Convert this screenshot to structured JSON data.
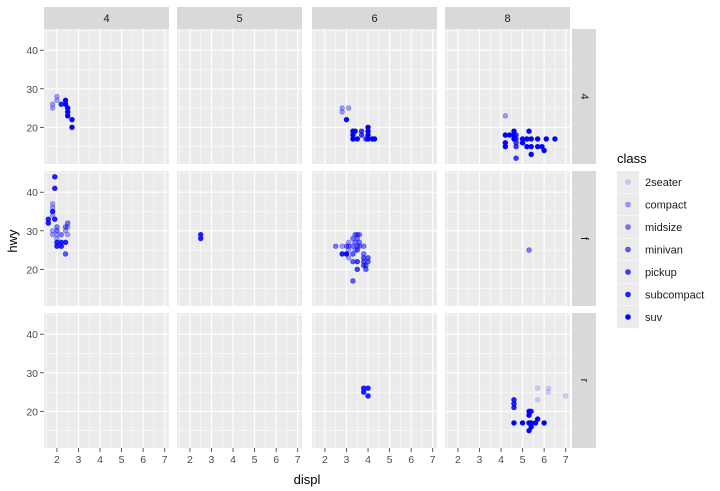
{
  "chart_data": {
    "type": "scatter",
    "facet_type": "grid",
    "xlabel": "displ",
    "ylabel": "hwy",
    "xlim": [
      1.4,
      7.2
    ],
    "ylim": [
      10.5,
      45.5
    ],
    "x_ticks": [
      2,
      3,
      4,
      5,
      6,
      7
    ],
    "y_ticks": [
      20,
      30,
      40
    ],
    "facet_cols": [
      "4",
      "5",
      "6",
      "8"
    ],
    "facet_rows": [
      "4",
      "f",
      "r"
    ],
    "grid": true,
    "legend": {
      "title": "class",
      "position": "right",
      "items": [
        {
          "label": "2seater",
          "color": "#0000ff",
          "alpha": 0.15
        },
        {
          "label": "compact",
          "color": "#0000ff",
          "alpha": 0.35
        },
        {
          "label": "midsize",
          "color": "#0000ff",
          "alpha": 0.5
        },
        {
          "label": "minivan",
          "color": "#0000ff",
          "alpha": 0.62
        },
        {
          "label": "pickup",
          "color": "#0000ff",
          "alpha": 0.75
        },
        {
          "label": "subcompact",
          "color": "#0000ff",
          "alpha": 0.87
        },
        {
          "label": "suv",
          "color": "#0000ff",
          "alpha": 1.0
        }
      ]
    },
    "panels": [
      {
        "row": "4",
        "col": "4",
        "points": [
          {
            "x": 1.8,
            "y": 26,
            "class": "compact"
          },
          {
            "x": 1.8,
            "y": 25,
            "class": "compact"
          },
          {
            "x": 2.0,
            "y": 28,
            "class": "compact"
          },
          {
            "x": 2.0,
            "y": 27,
            "class": "compact"
          },
          {
            "x": 2.2,
            "y": 26,
            "class": "subcompact"
          },
          {
            "x": 2.4,
            "y": 27,
            "class": "suv"
          },
          {
            "x": 2.4,
            "y": 26,
            "class": "suv"
          },
          {
            "x": 2.5,
            "y": 25,
            "class": "suv"
          },
          {
            "x": 2.5,
            "y": 24,
            "class": "suv"
          },
          {
            "x": 2.5,
            "y": 23,
            "class": "suv"
          },
          {
            "x": 2.7,
            "y": 22,
            "class": "suv"
          },
          {
            "x": 2.7,
            "y": 20,
            "class": "suv"
          }
        ]
      },
      {
        "row": "4",
        "col": "5",
        "points": []
      },
      {
        "row": "4",
        "col": "6",
        "points": [
          {
            "x": 2.8,
            "y": 25,
            "class": "compact"
          },
          {
            "x": 2.8,
            "y": 24,
            "class": "compact"
          },
          {
            "x": 3.1,
            "y": 25,
            "class": "compact"
          },
          {
            "x": 3.0,
            "y": 22,
            "class": "suv"
          },
          {
            "x": 3.3,
            "y": 19,
            "class": "suv"
          },
          {
            "x": 3.4,
            "y": 19,
            "class": "suv"
          },
          {
            "x": 3.3,
            "y": 18,
            "class": "suv"
          },
          {
            "x": 3.3,
            "y": 17,
            "class": "suv"
          },
          {
            "x": 3.5,
            "y": 17,
            "class": "suv"
          },
          {
            "x": 3.7,
            "y": 19,
            "class": "pickup"
          },
          {
            "x": 3.7,
            "y": 18,
            "class": "pickup"
          },
          {
            "x": 3.9,
            "y": 17,
            "class": "pickup"
          },
          {
            "x": 4.0,
            "y": 20,
            "class": "suv"
          },
          {
            "x": 4.0,
            "y": 19,
            "class": "suv"
          },
          {
            "x": 4.0,
            "y": 18,
            "class": "suv"
          },
          {
            "x": 4.0,
            "y": 17,
            "class": "suv"
          },
          {
            "x": 4.2,
            "y": 17,
            "class": "suv"
          },
          {
            "x": 4.3,
            "y": 17,
            "class": "suv"
          }
        ]
      },
      {
        "row": "4",
        "col": "8",
        "points": [
          {
            "x": 4.2,
            "y": 23,
            "class": "compact"
          },
          {
            "x": 4.2,
            "y": 18,
            "class": "suv"
          },
          {
            "x": 4.4,
            "y": 18,
            "class": "suv"
          },
          {
            "x": 4.2,
            "y": 16,
            "class": "suv"
          },
          {
            "x": 4.2,
            "y": 15,
            "class": "suv"
          },
          {
            "x": 4.6,
            "y": 19,
            "class": "suv"
          },
          {
            "x": 4.6,
            "y": 18,
            "class": "suv"
          },
          {
            "x": 4.6,
            "y": 17,
            "class": "suv"
          },
          {
            "x": 4.7,
            "y": 18,
            "class": "pickup"
          },
          {
            "x": 4.7,
            "y": 17,
            "class": "pickup"
          },
          {
            "x": 4.7,
            "y": 16,
            "class": "pickup"
          },
          {
            "x": 4.7,
            "y": 15,
            "class": "pickup"
          },
          {
            "x": 4.7,
            "y": 12,
            "class": "pickup"
          },
          {
            "x": 5.0,
            "y": 17,
            "class": "suv"
          },
          {
            "x": 5.0,
            "y": 16,
            "class": "suv"
          },
          {
            "x": 5.2,
            "y": 17,
            "class": "suv"
          },
          {
            "x": 5.2,
            "y": 15,
            "class": "suv"
          },
          {
            "x": 5.3,
            "y": 19,
            "class": "suv"
          },
          {
            "x": 5.4,
            "y": 17,
            "class": "suv"
          },
          {
            "x": 5.4,
            "y": 15,
            "class": "suv"
          },
          {
            "x": 5.4,
            "y": 13,
            "class": "suv"
          },
          {
            "x": 5.7,
            "y": 17,
            "class": "suv"
          },
          {
            "x": 5.7,
            "y": 15,
            "class": "suv"
          },
          {
            "x": 5.9,
            "y": 15,
            "class": "suv"
          },
          {
            "x": 6.0,
            "y": 14,
            "class": "suv"
          },
          {
            "x": 6.1,
            "y": 17,
            "class": "suv"
          },
          {
            "x": 6.5,
            "y": 17,
            "class": "suv"
          }
        ]
      },
      {
        "row": "f",
        "col": "4",
        "points": [
          {
            "x": 1.6,
            "y": 32,
            "class": "subcompact"
          },
          {
            "x": 1.6,
            "y": 33,
            "class": "subcompact"
          },
          {
            "x": 1.8,
            "y": 29,
            "class": "compact"
          },
          {
            "x": 1.8,
            "y": 30,
            "class": "compact"
          },
          {
            "x": 1.8,
            "y": 34,
            "class": "compact"
          },
          {
            "x": 1.8,
            "y": 35,
            "class": "subcompact"
          },
          {
            "x": 1.8,
            "y": 36,
            "class": "compact"
          },
          {
            "x": 1.8,
            "y": 37,
            "class": "compact"
          },
          {
            "x": 1.9,
            "y": 44,
            "class": "subcompact"
          },
          {
            "x": 1.9,
            "y": 41,
            "class": "subcompact"
          },
          {
            "x": 2.0,
            "y": 29,
            "class": "compact"
          },
          {
            "x": 2.0,
            "y": 28,
            "class": "compact"
          },
          {
            "x": 2.0,
            "y": 30,
            "class": "midsize"
          },
          {
            "x": 2.0,
            "y": 27,
            "class": "subcompact"
          },
          {
            "x": 2.0,
            "y": 26,
            "class": "subcompact"
          },
          {
            "x": 2.2,
            "y": 29,
            "class": "midsize"
          },
          {
            "x": 2.2,
            "y": 27,
            "class": "subcompact"
          },
          {
            "x": 2.2,
            "y": 26,
            "class": "subcompact"
          },
          {
            "x": 2.4,
            "y": 31,
            "class": "midsize"
          },
          {
            "x": 2.4,
            "y": 30,
            "class": "compact"
          },
          {
            "x": 2.4,
            "y": 27,
            "class": "subcompact"
          },
          {
            "x": 2.4,
            "y": 24,
            "class": "minivan"
          },
          {
            "x": 2.5,
            "y": 32,
            "class": "midsize"
          },
          {
            "x": 2.5,
            "y": 29,
            "class": "compact"
          },
          {
            "x": 2.5,
            "y": 31,
            "class": "compact"
          },
          {
            "x": 1.9,
            "y": 33,
            "class": "subcompact"
          },
          {
            "x": 2.0,
            "y": 31,
            "class": "midsize"
          }
        ]
      },
      {
        "row": "f",
        "col": "5",
        "points": [
          {
            "x": 2.5,
            "y": 29,
            "class": "subcompact"
          },
          {
            "x": 2.5,
            "y": 28,
            "class": "subcompact"
          }
        ]
      },
      {
        "row": "f",
        "col": "6",
        "points": [
          {
            "x": 2.5,
            "y": 26,
            "class": "midsize"
          },
          {
            "x": 2.8,
            "y": 26,
            "class": "compact"
          },
          {
            "x": 2.8,
            "y": 24,
            "class": "subcompact"
          },
          {
            "x": 3.0,
            "y": 26,
            "class": "midsize"
          },
          {
            "x": 3.0,
            "y": 24,
            "class": "minivan"
          },
          {
            "x": 3.1,
            "y": 27,
            "class": "compact"
          },
          {
            "x": 3.1,
            "y": 26,
            "class": "midsize"
          },
          {
            "x": 3.1,
            "y": 25,
            "class": "compact"
          },
          {
            "x": 3.1,
            "y": 23,
            "class": "compact"
          },
          {
            "x": 3.3,
            "y": 28,
            "class": "midsize"
          },
          {
            "x": 3.3,
            "y": 26,
            "class": "midsize"
          },
          {
            "x": 3.3,
            "y": 24,
            "class": "minivan"
          },
          {
            "x": 3.3,
            "y": 22,
            "class": "minivan"
          },
          {
            "x": 3.4,
            "y": 29,
            "class": "midsize"
          },
          {
            "x": 3.4,
            "y": 27,
            "class": "midsize"
          },
          {
            "x": 3.4,
            "y": 25,
            "class": "compact"
          },
          {
            "x": 3.5,
            "y": 29,
            "class": "midsize"
          },
          {
            "x": 3.5,
            "y": 28,
            "class": "midsize"
          },
          {
            "x": 3.5,
            "y": 26,
            "class": "midsize"
          },
          {
            "x": 3.5,
            "y": 25,
            "class": "minivan"
          },
          {
            "x": 3.5,
            "y": 22,
            "class": "pickup"
          },
          {
            "x": 3.5,
            "y": 20,
            "class": "pickup"
          },
          {
            "x": 3.6,
            "y": 26,
            "class": "midsize"
          },
          {
            "x": 3.6,
            "y": 27,
            "class": "midsize"
          },
          {
            "x": 3.6,
            "y": 29,
            "class": "midsize"
          },
          {
            "x": 3.8,
            "y": 26,
            "class": "midsize"
          },
          {
            "x": 3.8,
            "y": 24,
            "class": "midsize"
          },
          {
            "x": 3.8,
            "y": 23,
            "class": "minivan"
          },
          {
            "x": 3.8,
            "y": 22,
            "class": "minivan"
          },
          {
            "x": 3.8,
            "y": 21,
            "class": "minivan"
          },
          {
            "x": 3.9,
            "y": 21,
            "class": "minivan"
          },
          {
            "x": 4.0,
            "y": 23,
            "class": "minivan"
          },
          {
            "x": 4.0,
            "y": 22,
            "class": "minivan"
          },
          {
            "x": 3.9,
            "y": 20,
            "class": "minivan"
          },
          {
            "x": 3.3,
            "y": 17,
            "class": "minivan"
          },
          {
            "x": 3.0,
            "y": 24,
            "class": "subcompact"
          }
        ]
      },
      {
        "row": "f",
        "col": "8",
        "points": [
          {
            "x": 5.3,
            "y": 25,
            "class": "midsize"
          }
        ]
      },
      {
        "row": "r",
        "col": "4",
        "points": []
      },
      {
        "row": "r",
        "col": "5",
        "points": []
      },
      {
        "row": "r",
        "col": "6",
        "points": [
          {
            "x": 3.8,
            "y": 26,
            "class": "subcompact"
          },
          {
            "x": 3.8,
            "y": 25,
            "class": "subcompact"
          },
          {
            "x": 4.0,
            "y": 26,
            "class": "subcompact"
          },
          {
            "x": 4.0,
            "y": 24,
            "class": "subcompact"
          }
        ]
      },
      {
        "row": "r",
        "col": "8",
        "points": [
          {
            "x": 5.7,
            "y": 26,
            "class": "2seater"
          },
          {
            "x": 6.2,
            "y": 26,
            "class": "2seater"
          },
          {
            "x": 6.2,
            "y": 25,
            "class": "2seater"
          },
          {
            "x": 7.0,
            "y": 24,
            "class": "2seater"
          },
          {
            "x": 5.7,
            "y": 23,
            "class": "2seater"
          },
          {
            "x": 4.6,
            "y": 23,
            "class": "subcompact"
          },
          {
            "x": 4.6,
            "y": 22,
            "class": "subcompact"
          },
          {
            "x": 4.6,
            "y": 21,
            "class": "subcompact"
          },
          {
            "x": 4.6,
            "y": 17,
            "class": "suv"
          },
          {
            "x": 5.3,
            "y": 20,
            "class": "suv"
          },
          {
            "x": 5.3,
            "y": 19,
            "class": "suv"
          },
          {
            "x": 5.3,
            "y": 17,
            "class": "suv"
          },
          {
            "x": 5.3,
            "y": 15,
            "class": "suv"
          },
          {
            "x": 5.4,
            "y": 20,
            "class": "subcompact"
          },
          {
            "x": 5.4,
            "y": 17,
            "class": "suv"
          },
          {
            "x": 5.4,
            "y": 16,
            "class": "suv"
          },
          {
            "x": 5.6,
            "y": 17,
            "class": "suv"
          },
          {
            "x": 5.7,
            "y": 18,
            "class": "suv"
          },
          {
            "x": 6.0,
            "y": 17,
            "class": "suv"
          },
          {
            "x": 5.0,
            "y": 17,
            "class": "suv"
          }
        ]
      }
    ]
  }
}
